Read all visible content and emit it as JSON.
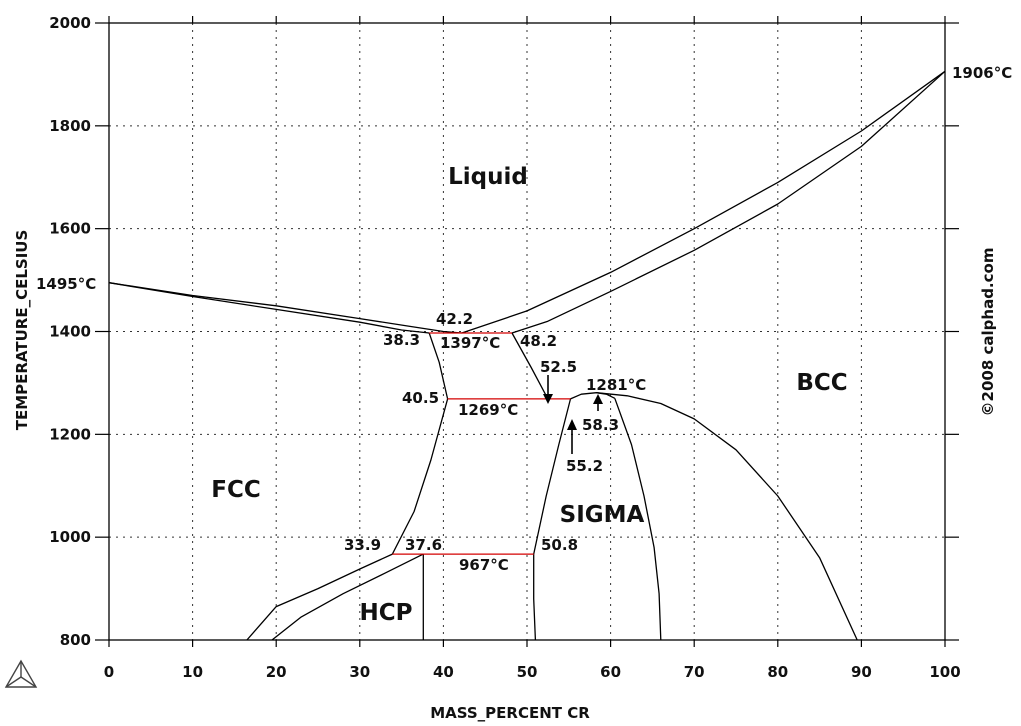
{
  "chart_data": {
    "type": "line",
    "xlabel": "MASS_PERCENT CR",
    "ylabel": "TEMPERATURE_CELSIUS",
    "xlim": [
      0,
      100
    ],
    "ylim": [
      800,
      2000
    ],
    "x_ticks": [
      "0",
      "10",
      "20",
      "30",
      "40",
      "50",
      "60",
      "70",
      "80",
      "90",
      "100"
    ],
    "y_ticks": [
      "800",
      "1000",
      "1200",
      "1400",
      "1600",
      "1800",
      "2000"
    ],
    "grid": true,
    "copyright": "©2008 calphad.com",
    "phase_labels": [
      "Liquid",
      "FCC",
      "BCC",
      "SIGMA",
      "HCP"
    ],
    "annotations": [
      "1495°C",
      "1906°C",
      "42.2",
      "38.3",
      "1397°C",
      "48.2",
      "52.5",
      "1281°C",
      "40.5",
      "1269°C",
      "58.3",
      "55.2",
      "33.9",
      "37.6",
      "50.8",
      "967°C"
    ],
    "phase_boundaries": [
      {
        "name": "liquidus-left",
        "color": "#000000",
        "x": [
          0,
          10,
          20,
          30,
          36,
          40,
          42.2
        ],
        "y": [
          1495,
          1470,
          1450,
          1425,
          1410,
          1400,
          1397
        ]
      },
      {
        "name": "solidus-left",
        "color": "#000000",
        "x": [
          0,
          10,
          20,
          30,
          35,
          38.3
        ],
        "y": [
          1495,
          1468,
          1443,
          1418,
          1403,
          1397
        ]
      },
      {
        "name": "liquidus-right",
        "color": "#000000",
        "x": [
          42.2,
          50,
          60,
          70,
          80,
          90,
          100
        ],
        "y": [
          1397,
          1440,
          1515,
          1600,
          1690,
          1790,
          1906
        ]
      },
      {
        "name": "solidus-right",
        "color": "#000000",
        "x": [
          48.2,
          52.5,
          60,
          70,
          80,
          90,
          100
        ],
        "y": [
          1397,
          1420,
          1478,
          1558,
          1648,
          1760,
          1906
        ]
      },
      {
        "name": "fcc-solvus-upper",
        "color": "#000000",
        "x": [
          38.3,
          39.5,
          40.5
        ],
        "y": [
          1397,
          1340,
          1269
        ]
      },
      {
        "name": "bcc-solvus-upper",
        "color": "#000000",
        "x": [
          48.2,
          50.5,
          52.5
        ],
        "y": [
          1397,
          1330,
          1269
        ]
      },
      {
        "name": "fcc-solvus-lower",
        "color": "#000000",
        "x": [
          40.5,
          38.5,
          36.5,
          33.9
        ],
        "y": [
          1269,
          1150,
          1050,
          967
        ]
      },
      {
        "name": "fcc-hcp-upper",
        "color": "#000000",
        "x": [
          33.9,
          30,
          25,
          20,
          16.5
        ],
        "y": [
          967,
          938,
          900,
          865,
          800
        ]
      },
      {
        "name": "fcc-hcp-lower",
        "color": "#000000",
        "x": [
          37.6,
          33,
          28,
          23,
          19.5
        ],
        "y": [
          967,
          930,
          890,
          845,
          800
        ]
      },
      {
        "name": "hcp-solvus",
        "color": "#000000",
        "x": [
          37.6,
          37.6
        ],
        "y": [
          967,
          800
        ]
      },
      {
        "name": "sigma-left",
        "color": "#000000",
        "x": [
          55.2,
          53.8,
          52.3,
          50.8
        ],
        "y": [
          1269,
          1180,
          1080,
          967
        ]
      },
      {
        "name": "sigma-left-low",
        "color": "#000000",
        "x": [
          50.8,
          50.8,
          51
        ],
        "y": [
          967,
          880,
          800
        ]
      },
      {
        "name": "sigma-top",
        "color": "#000000",
        "x": [
          55.2,
          56.5,
          58.3,
          59.5,
          60.5
        ],
        "y": [
          1269,
          1278,
          1281,
          1278,
          1270
        ]
      },
      {
        "name": "sigma-right",
        "color": "#000000",
        "x": [
          60.5,
          62.5,
          64,
          65.2,
          65.8,
          66
        ],
        "y": [
          1270,
          1180,
          1080,
          980,
          890,
          800
        ]
      },
      {
        "name": "bcc-solvus",
        "color": "#000000",
        "x": [
          58.3,
          62,
          66,
          70,
          75,
          80,
          85,
          89.5
        ],
        "y": [
          1281,
          1275,
          1260,
          1230,
          1170,
          1080,
          960,
          800
        ]
      },
      {
        "name": "eutectic-1397",
        "color": "#d40000",
        "x": [
          38.3,
          48.2
        ],
        "y": [
          1397,
          1397
        ]
      },
      {
        "name": "peritectoid-1269",
        "color": "#d40000",
        "x": [
          40.5,
          55.2
        ],
        "y": [
          1269,
          1269
        ]
      },
      {
        "name": "eutectoid-967",
        "color": "#d40000",
        "x": [
          33.9,
          50.8
        ],
        "y": [
          967,
          967
        ]
      }
    ]
  }
}
